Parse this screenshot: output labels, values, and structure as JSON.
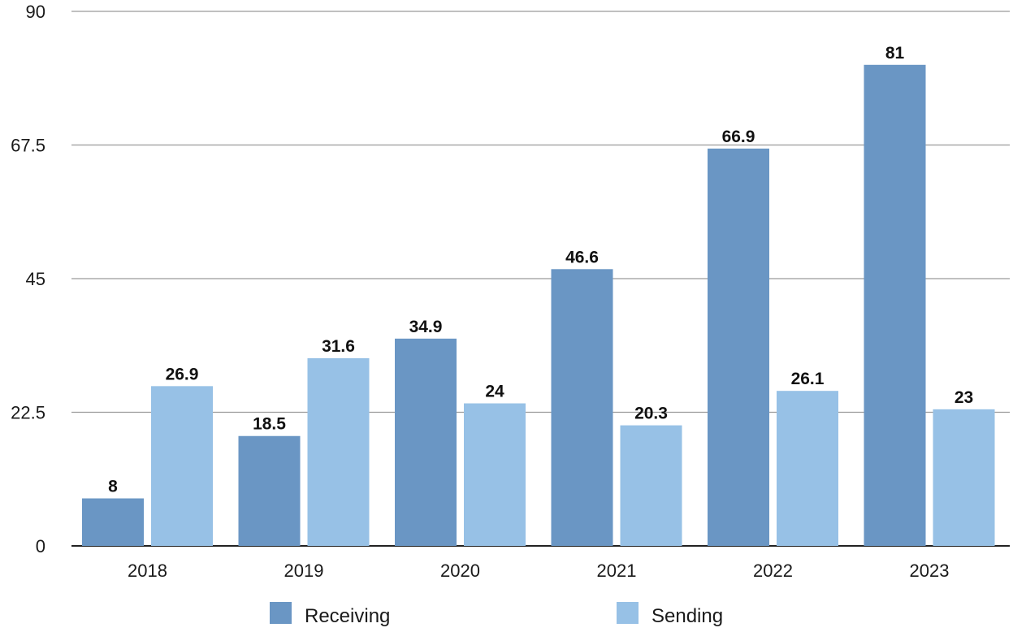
{
  "chart_data": {
    "type": "bar",
    "title": "",
    "xlabel": "",
    "ylabel": "",
    "categories": [
      "2018",
      "2019",
      "2020",
      "2021",
      "2022",
      "2023"
    ],
    "series": [
      {
        "name": "Receiving",
        "values": [
          8,
          18.5,
          34.9,
          46.6,
          66.9,
          81
        ],
        "labels": [
          "8",
          "18.5",
          "34.9",
          "46.6",
          "66.9",
          "81"
        ],
        "color": "#6a96c4"
      },
      {
        "name": "Sending",
        "values": [
          26.9,
          31.6,
          24,
          20.3,
          26.1,
          23
        ],
        "labels": [
          "26.9",
          "31.6",
          "24",
          "20.3",
          "26.1",
          "23"
        ],
        "color": "#97c1e6"
      }
    ],
    "ylim": [
      0,
      90
    ],
    "yticks": [
      "0",
      "22.5",
      "45",
      "67.5",
      "90"
    ],
    "grid": true,
    "legend_position": "bottom"
  }
}
